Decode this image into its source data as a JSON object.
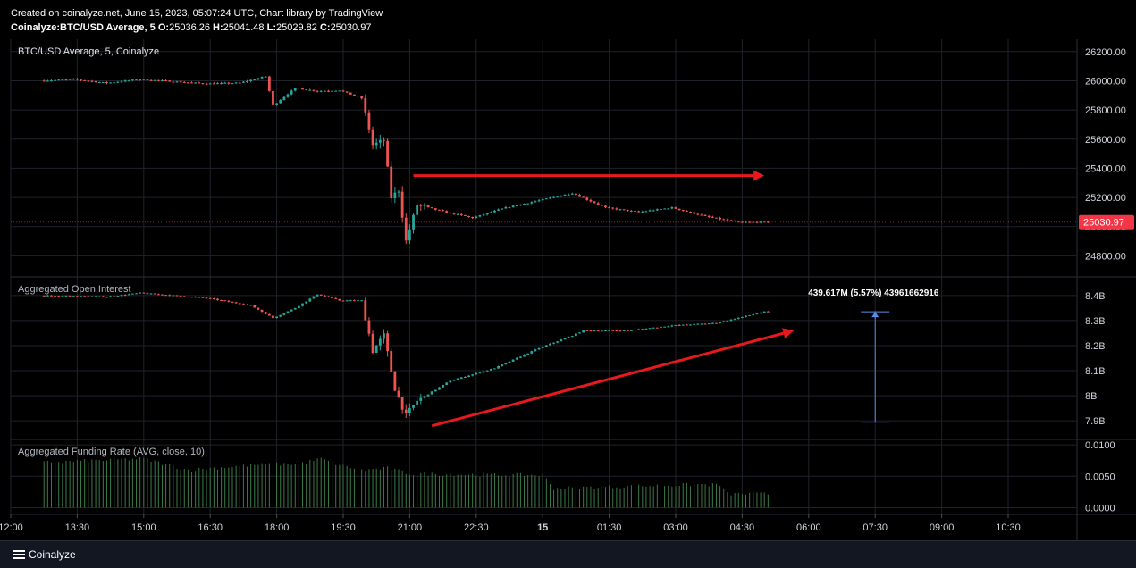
{
  "header": {
    "created_line": "Created on coinalyze.net, June 15, 2023, 05:07:24 UTC, Chart library by TradingView",
    "symbol": "Coinalyze:BTC/USD Average, 5",
    "ohlc": {
      "O": "25036.26",
      "H": "25041.48",
      "L": "25029.82",
      "C": "25030.97"
    }
  },
  "footer": {
    "brand": "Coinalyze"
  },
  "colors": {
    "up": "#26a69a",
    "down": "#ef5350",
    "arrow": "#e8191c",
    "measure": "#5b8def",
    "grid": "#1f222b",
    "price_tag": "#f23645"
  },
  "chart_data": [
    {
      "type": "candlestick",
      "title": "BTC/USD Average, 5, Coinalyze",
      "y_ticks": [
        24800,
        25000,
        25200,
        25400,
        25600,
        25800,
        26000,
        26200
      ],
      "y_tick_labels": [
        "24800.00",
        "25000.00",
        "25200.00",
        "25400.00",
        "25600.00",
        "25800.00",
        "26000.00",
        "26200.00"
      ],
      "ylim": [
        24680,
        26260
      ],
      "last_price_label": "25030.97",
      "last_price": 25030.97,
      "price_path": [
        [
          "12:45",
          26000
        ],
        [
          "13:30",
          26010
        ],
        [
          "14:15",
          25985
        ],
        [
          "15:00",
          26010
        ],
        [
          "15:45",
          25995
        ],
        [
          "16:30",
          25980
        ],
        [
          "17:15",
          25985
        ],
        [
          "17:50",
          26030
        ],
        [
          "18:00",
          25830
        ],
        [
          "18:30",
          25950
        ],
        [
          "19:00",
          25930
        ],
        [
          "19:30",
          25935
        ],
        [
          "20:00",
          25880
        ],
        [
          "20:15",
          25560
        ],
        [
          "20:30",
          25590
        ],
        [
          "20:40",
          25200
        ],
        [
          "20:50",
          25250
        ],
        [
          "21:00",
          24900
        ],
        [
          "21:15",
          25150
        ],
        [
          "21:45",
          25110
        ],
        [
          "22:30",
          25060
        ],
        [
          "23:15",
          25130
        ],
        [
          "00:00",
          25180
        ],
        [
          "00:45",
          25230
        ],
        [
          "01:30",
          25130
        ],
        [
          "02:15",
          25100
        ],
        [
          "03:00",
          25130
        ],
        [
          "03:45",
          25070
        ],
        [
          "04:30",
          25030
        ],
        [
          "05:05",
          25030
        ]
      ],
      "annotation": {
        "type": "horizontal-arrow",
        "from": [
          "21:05",
          25350
        ],
        "to": [
          "05:00",
          25350
        ]
      }
    },
    {
      "type": "candlestick",
      "title": "Aggregated Open Interest",
      "y_ticks": [
        7.9,
        8.0,
        8.1,
        8.2,
        8.3,
        8.4
      ],
      "y_tick_labels": [
        "7.9B",
        "8B",
        "8.1B",
        "8.2B",
        "8.3B",
        "8.4B"
      ],
      "ylim": [
        7.84,
        8.46
      ],
      "unit": "B",
      "oi_path": [
        [
          "12:45",
          8.4
        ],
        [
          "14:15",
          8.395
        ],
        [
          "15:00",
          8.41
        ],
        [
          "16:30",
          8.39
        ],
        [
          "17:30",
          8.36
        ],
        [
          "18:00",
          8.31
        ],
        [
          "18:30",
          8.35
        ],
        [
          "19:00",
          8.405
        ],
        [
          "19:30",
          8.38
        ],
        [
          "20:00",
          8.38
        ],
        [
          "20:15",
          8.18
        ],
        [
          "20:30",
          8.24
        ],
        [
          "20:45",
          8.03
        ],
        [
          "21:00",
          7.92
        ],
        [
          "21:15",
          7.98
        ],
        [
          "22:00",
          8.06
        ],
        [
          "23:00",
          8.11
        ],
        [
          "00:00",
          8.19
        ],
        [
          "00:45",
          8.24
        ],
        [
          "01:00",
          8.26
        ],
        [
          "02:00",
          8.26
        ],
        [
          "03:00",
          8.28
        ],
        [
          "04:00",
          8.29
        ],
        [
          "05:05",
          8.335
        ]
      ],
      "measure": {
        "label": "439.617M (5.57%) 43961662916",
        "from": [
          "07:30",
          7.895
        ],
        "to": [
          "07:30",
          8.335
        ]
      },
      "annotation": {
        "type": "diagonal-arrow",
        "from": [
          "21:30",
          7.88
        ],
        "to": [
          "05:40",
          8.26
        ]
      }
    },
    {
      "type": "bar",
      "title": "Aggregated Funding Rate (AVG, close, 10)",
      "y_ticks": [
        0.0,
        0.005,
        0.01
      ],
      "y_tick_labels": [
        "0.0000",
        "0.0050",
        "0.0100"
      ],
      "ylim": [
        -0.0005,
        0.0103
      ],
      "rate_path": [
        [
          "12:45",
          0.0072
        ],
        [
          "15:00",
          0.0078
        ],
        [
          "16:00",
          0.006
        ],
        [
          "17:30",
          0.0068
        ],
        [
          "18:30",
          0.007
        ],
        [
          "19:00",
          0.0078
        ],
        [
          "19:30",
          0.0066
        ],
        [
          "20:00",
          0.006
        ],
        [
          "20:30",
          0.0063
        ],
        [
          "21:00",
          0.0054
        ],
        [
          "23:00",
          0.0052
        ],
        [
          "00:00",
          0.0052
        ],
        [
          "00:15",
          0.0031
        ],
        [
          "02:00",
          0.0034
        ],
        [
          "03:30",
          0.0037
        ],
        [
          "04:00",
          0.0036
        ],
        [
          "04:10",
          0.0022
        ],
        [
          "05:05",
          0.0022
        ]
      ]
    }
  ],
  "x_axis": {
    "tick_labels": [
      "13:30",
      "15:00",
      "16:30",
      "18:00",
      "19:30",
      "21:00",
      "22:30",
      "15",
      "01:30",
      "03:00",
      "04:30",
      "06:00",
      "07:30",
      "09:00",
      "10:30",
      "12:00"
    ]
  }
}
